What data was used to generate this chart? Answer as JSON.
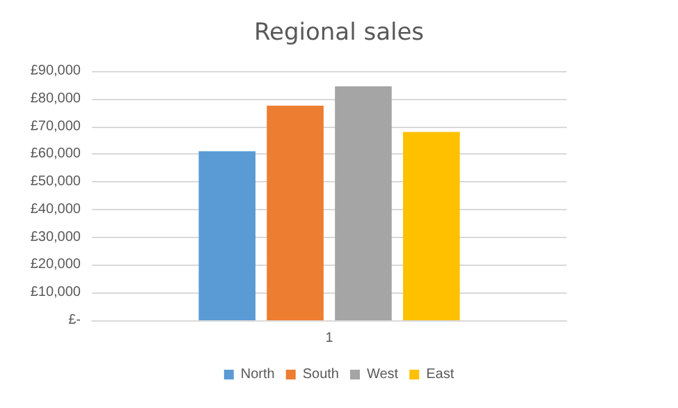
{
  "chart_data": {
    "type": "bar",
    "title": "Regional sales",
    "categories": [
      "1"
    ],
    "series": [
      {
        "name": "North",
        "color": "#5b9bd5",
        "values": [
          61000
        ]
      },
      {
        "name": "South",
        "color": "#ed7d31",
        "values": [
          77500
        ]
      },
      {
        "name": "West",
        "color": "#a5a5a5",
        "values": [
          84500
        ]
      },
      {
        "name": "East",
        "color": "#ffc000",
        "values": [
          68000
        ]
      }
    ],
    "ylim": [
      0,
      90000
    ],
    "yticks": [
      {
        "value": 0,
        "label": "£-"
      },
      {
        "value": 10000,
        "label": "£10,000"
      },
      {
        "value": 20000,
        "label": "£20,000"
      },
      {
        "value": 30000,
        "label": "£30,000"
      },
      {
        "value": 40000,
        "label": "£40,000"
      },
      {
        "value": 50000,
        "label": "£50,000"
      },
      {
        "value": 60000,
        "label": "£60,000"
      },
      {
        "value": 70000,
        "label": "£70,000"
      },
      {
        "value": 80000,
        "label": "£80,000"
      },
      {
        "value": 90000,
        "label": "£90,000"
      }
    ],
    "grid": "y",
    "legend": "bottom"
  }
}
